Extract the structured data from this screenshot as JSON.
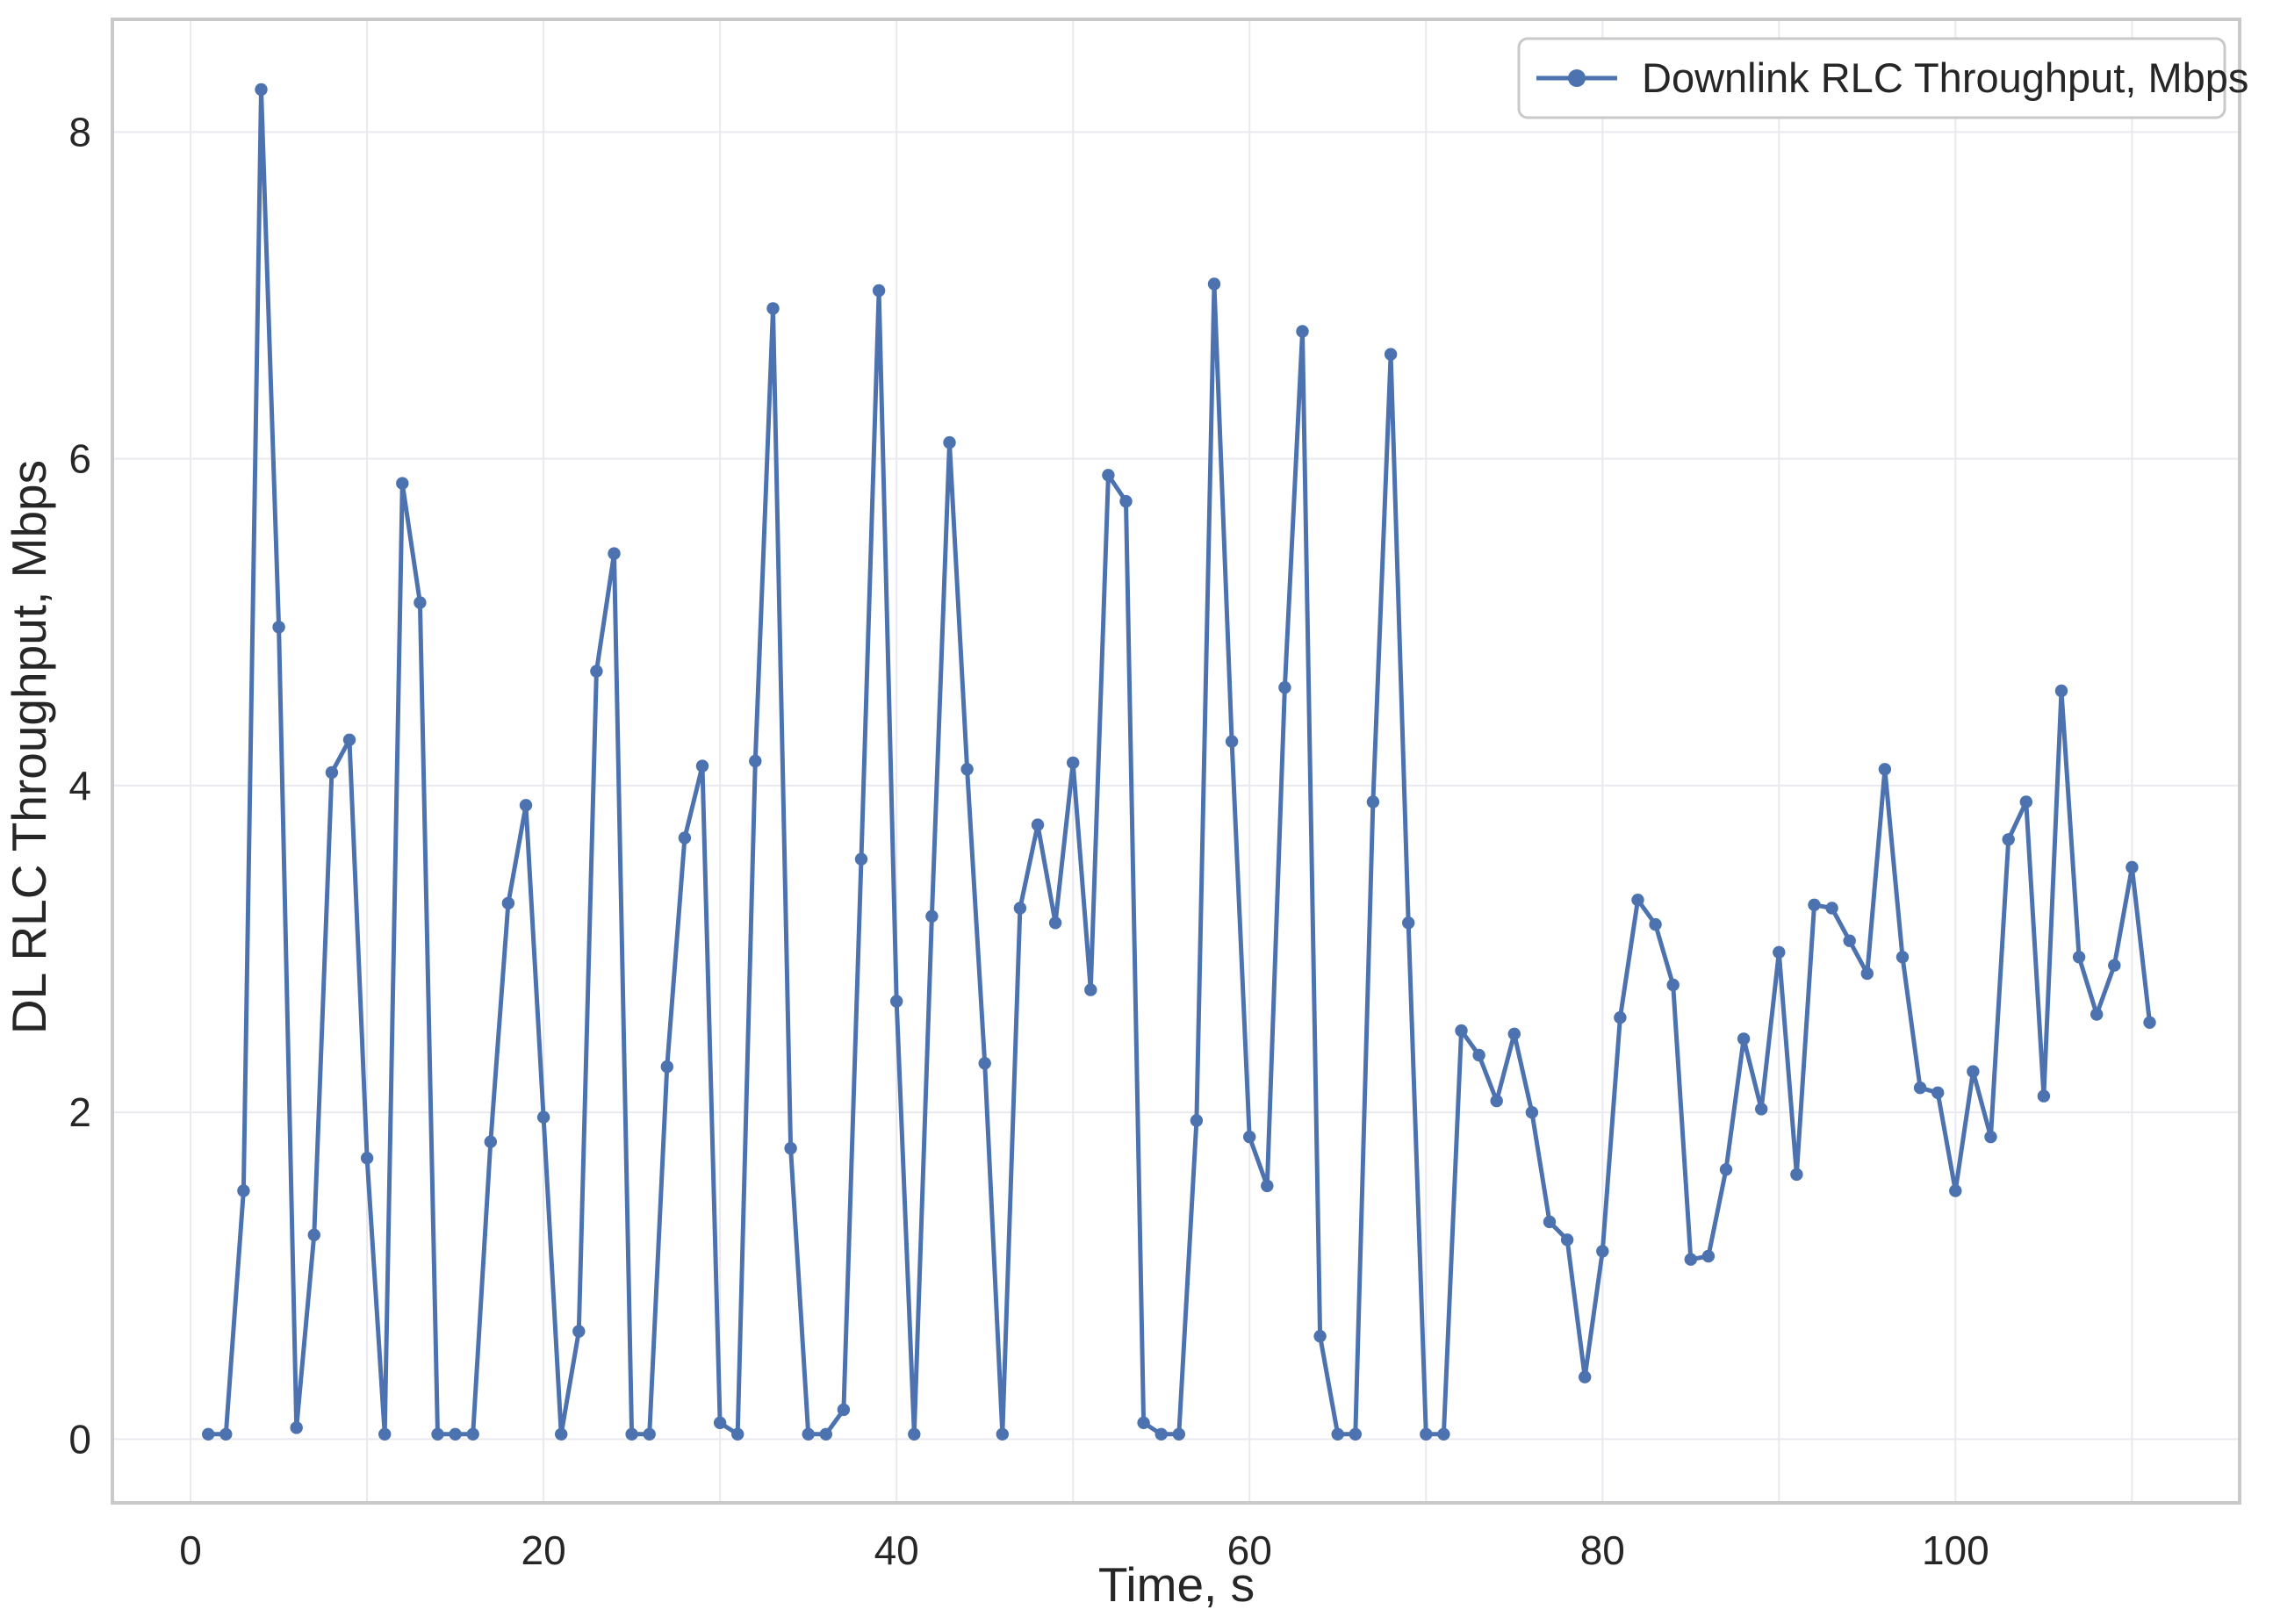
{
  "figure": {
    "background": "#ffffff",
    "line_color": "#4C72B0",
    "grid_color": "#e9e9ef",
    "spine_color": "#c9c9c9",
    "text_color": "#262626"
  },
  "chart_data": {
    "type": "line",
    "title": "",
    "xlabel": "Time, s",
    "ylabel": "DL RLC Throughput, Mbps",
    "legend_position": "upper right",
    "grid": true,
    "marker": "circle",
    "xlim": [
      -4.43,
      116.1
    ],
    "ylim": [
      -0.39,
      8.69
    ],
    "x_tick_values": [
      0,
      20,
      40,
      60,
      80,
      100
    ],
    "x_tick_labels": [
      "0",
      "20",
      "40",
      "60",
      "80",
      "100"
    ],
    "x_grid_values": [
      0,
      10,
      20,
      30,
      40,
      50,
      60,
      70,
      80,
      90,
      100,
      110
    ],
    "y_tick_values": [
      0,
      2,
      4,
      6,
      8
    ],
    "y_tick_labels": [
      "0",
      "2",
      "4",
      "6",
      "8"
    ],
    "series": [
      {
        "name": "Downlink RLC Throughput, Mbps",
        "color": "#4C72B0",
        "x": [
          1,
          2,
          3,
          4,
          5,
          6,
          7,
          8,
          9,
          10,
          11,
          12,
          13,
          14,
          15,
          16,
          17,
          18,
          19,
          20,
          21,
          22,
          23,
          24,
          25,
          26,
          27,
          28,
          29,
          30,
          31,
          32,
          33,
          34,
          35,
          36,
          37,
          38,
          39,
          40,
          41,
          42,
          43,
          44,
          45,
          46,
          47,
          48,
          49,
          50,
          51,
          52,
          53,
          54,
          55,
          56,
          57,
          58,
          59,
          60,
          61,
          62,
          63,
          64,
          65,
          66,
          67,
          68,
          69,
          70,
          71,
          72,
          73,
          74,
          75,
          76,
          77,
          78,
          79,
          80,
          81,
          82,
          83,
          84,
          85,
          86,
          87,
          88,
          89,
          90,
          91,
          92,
          93,
          94,
          95,
          96,
          97,
          98,
          99,
          100,
          101,
          102,
          103,
          104,
          105,
          106,
          107,
          108,
          109,
          110,
          111
        ],
        "values": [
          0.03,
          0.03,
          1.52,
          8.26,
          4.97,
          0.07,
          1.25,
          4.08,
          4.28,
          1.72,
          0.03,
          5.85,
          5.12,
          0.03,
          0.03,
          0.03,
          1.82,
          3.28,
          3.88,
          1.97,
          0.03,
          0.66,
          4.7,
          5.42,
          0.03,
          0.03,
          2.28,
          3.68,
          4.12,
          0.1,
          0.03,
          4.15,
          6.92,
          1.78,
          0.03,
          0.03,
          0.18,
          3.55,
          7.03,
          2.68,
          0.03,
          3.2,
          6.1,
          4.1,
          2.3,
          0.03,
          3.25,
          3.76,
          3.16,
          4.14,
          2.75,
          5.9,
          5.74,
          0.1,
          0.03,
          0.03,
          1.95,
          7.07,
          4.27,
          1.85,
          1.55,
          4.6,
          6.78,
          0.63,
          0.03,
          0.03,
          3.9,
          6.64,
          3.16,
          0.03,
          0.03,
          2.5,
          2.35,
          2.07,
          2.48,
          2.0,
          1.33,
          1.22,
          0.38,
          1.15,
          2.58,
          3.3,
          3.15,
          2.78,
          1.1,
          1.12,
          1.65,
          2.45,
          2.02,
          2.98,
          1.62,
          3.27,
          3.25,
          3.05,
          2.85,
          4.1,
          2.95,
          2.15,
          2.12,
          1.52,
          2.25,
          1.85,
          3.67,
          3.9,
          2.1,
          4.58,
          2.95,
          2.6,
          2.9,
          3.5,
          2.55
        ]
      }
    ]
  }
}
